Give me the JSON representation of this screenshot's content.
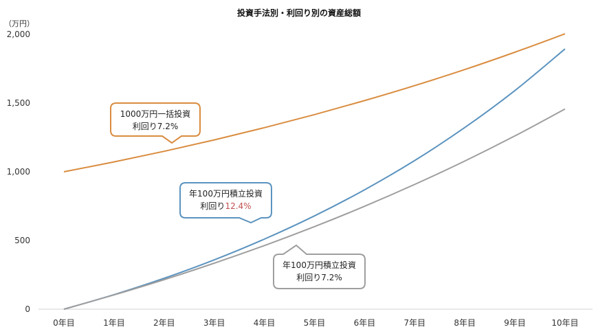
{
  "chart_data": {
    "type": "line",
    "title": "投資手法別・利回り別の資産総額",
    "ylabel": "（万円）",
    "xlabel": "",
    "categories": [
      "0年目",
      "1年目",
      "2年目",
      "3年目",
      "4年目",
      "5年目",
      "6年目",
      "7年目",
      "8年目",
      "9年目",
      "10年目"
    ],
    "ylim": [
      0,
      2000
    ],
    "yticks": [
      0,
      500,
      1000,
      1500,
      2000
    ],
    "ytick_labels": [
      "0",
      "500",
      "1,000",
      "1,500",
      "2,000"
    ],
    "grid": false,
    "series": [
      {
        "color": "#d98c3f",
        "values": [
          1000,
          1072,
          1149,
          1232,
          1321,
          1416,
          1518,
          1627,
          1744,
          1870,
          2004
        ]
      },
      {
        "color": "#5b93bf",
        "values": [
          0,
          106,
          225,
          359,
          510,
          679,
          869,
          1082,
          1322,
          1591,
          1894
        ]
      },
      {
        "color": "#9e9e9e",
        "values": [
          0,
          104,
          215,
          335,
          463,
          601,
          749,
          908,
          1078,
          1261,
          1457
        ]
      }
    ],
    "callouts": [
      {
        "line1": "1000万円一括投資",
        "line2_prefix": "利回り",
        "line2_value": "7.2%",
        "value_color": "#222222",
        "border": "#d98c3f"
      },
      {
        "line1": "年100万円積立投資",
        "line2_prefix": "利回り",
        "line2_value": "12.4%",
        "value_color": "#c0504d",
        "border": "#5b93bf"
      },
      {
        "line1": "年100万円積立投資",
        "line2_prefix": "利回り",
        "line2_value": "7.2%",
        "value_color": "#222222",
        "border": "#9e9e9e"
      }
    ]
  }
}
